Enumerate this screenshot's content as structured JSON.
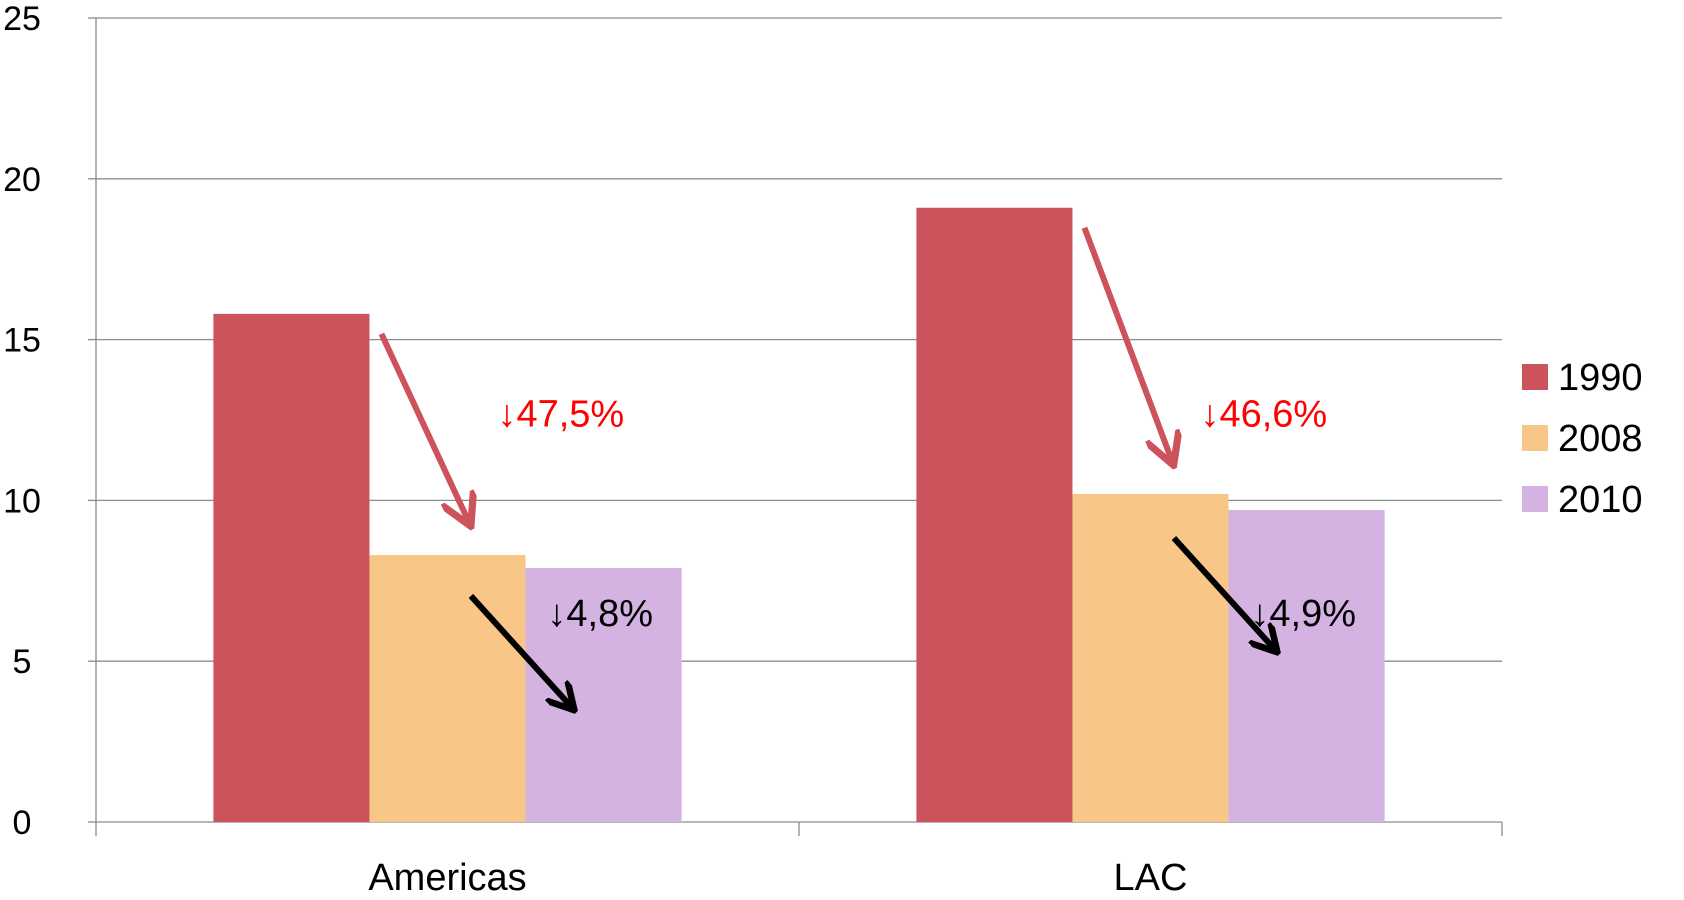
{
  "chart_data": {
    "type": "bar",
    "categories": [
      "Americas",
      "LAC"
    ],
    "series": [
      {
        "name": "1990",
        "values": [
          15.8,
          19.1
        ],
        "color": "#cc525b"
      },
      {
        "name": "2008",
        "values": [
          8.3,
          10.2
        ],
        "color": "#f8c687"
      },
      {
        "name": "2010",
        "values": [
          7.9,
          9.7
        ],
        "color": "#d4b3e2"
      }
    ],
    "ylim": [
      0,
      25
    ],
    "yticks": [
      "0",
      "5",
      "10",
      "15",
      "20",
      "25"
    ],
    "grid": true,
    "legend_position": "right",
    "title": "",
    "xlabel": "",
    "ylabel": "",
    "annotations": [
      {
        "text": "↓47,5%",
        "color": "#ff0000",
        "category": "Americas",
        "from_series": "1990",
        "to_series": "2008"
      },
      {
        "text": "↓4,8%",
        "color": "#000000",
        "category": "Americas",
        "from_series": "2008",
        "to_series": "2010"
      },
      {
        "text": "↓46,6%",
        "color": "#ff0000",
        "category": "LAC",
        "from_series": "1990",
        "to_series": "2008"
      },
      {
        "text": "↓4,9%",
        "color": "#000000",
        "category": "LAC",
        "from_series": "2008",
        "to_series": "2010"
      }
    ]
  }
}
